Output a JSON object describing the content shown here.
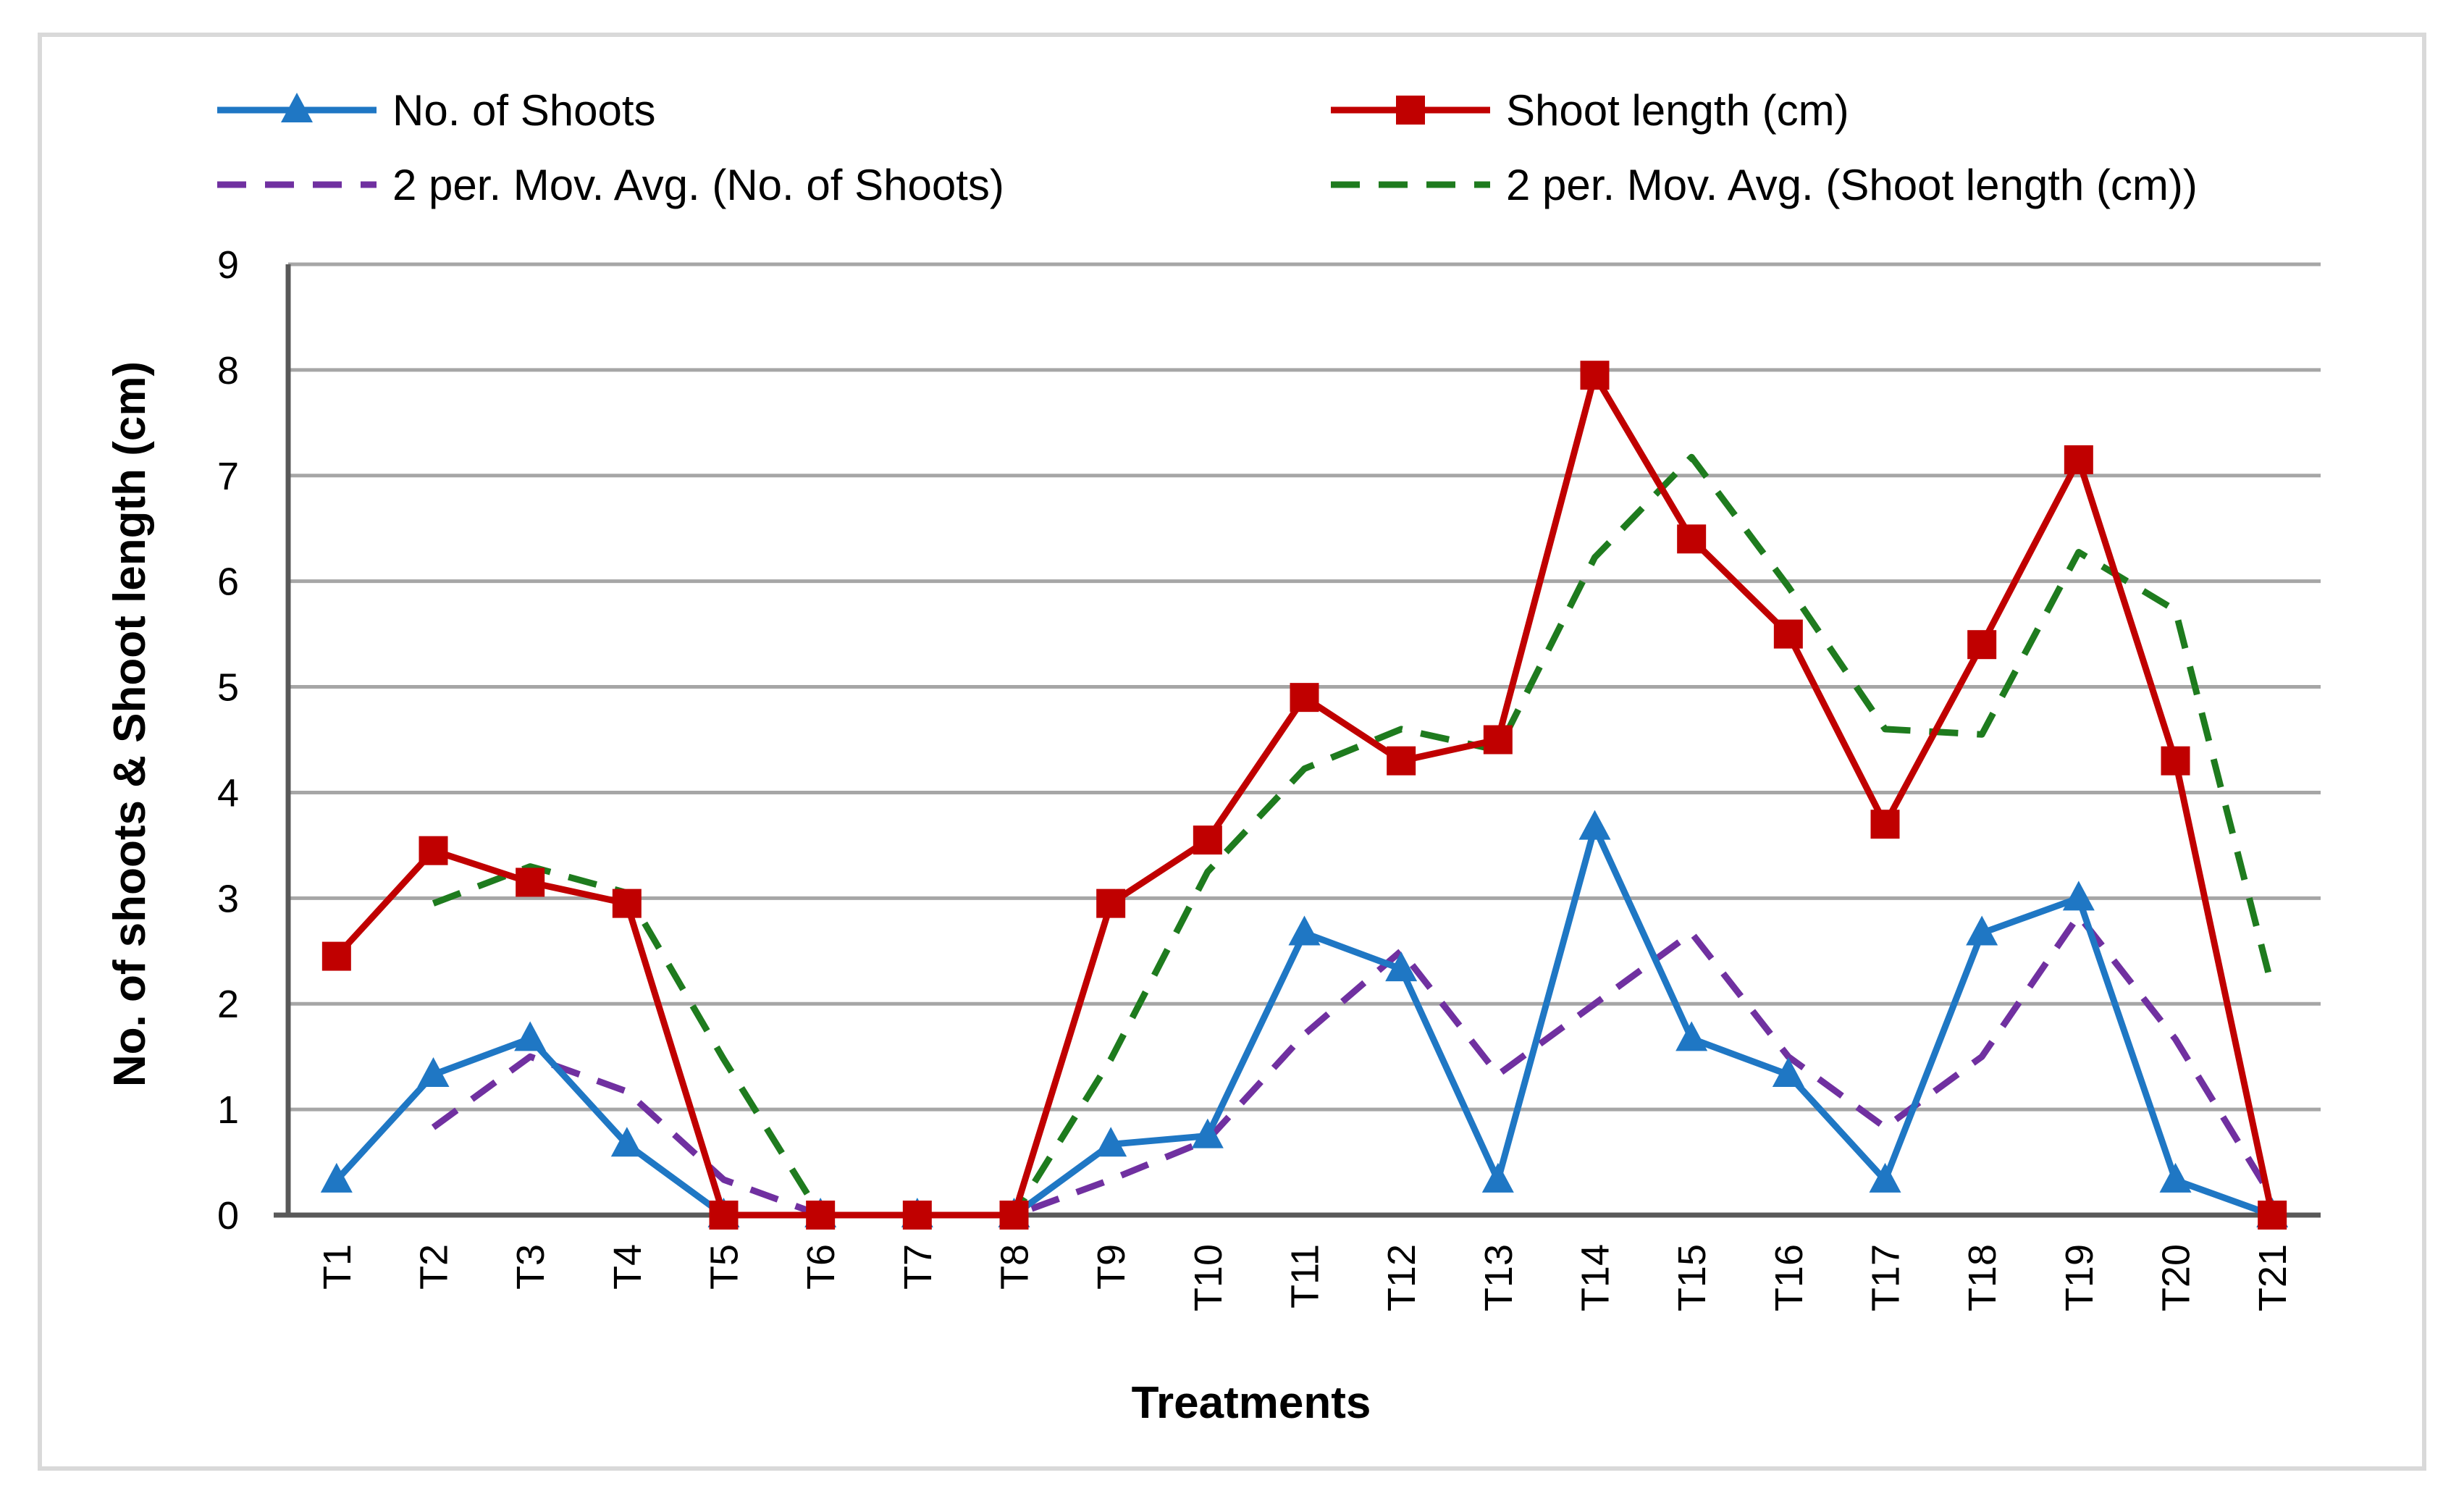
{
  "chart_data": {
    "type": "line",
    "title": "",
    "xlabel": "Treatments",
    "ylabel": "No. of shoots & Shoot length (cm)",
    "ylim": [
      0,
      9
    ],
    "yticks": [
      "0",
      "1",
      "2",
      "3",
      "4",
      "5",
      "6",
      "7",
      "8",
      "9"
    ],
    "grid": true,
    "legend_position": "top",
    "categories": [
      "T1",
      "T2",
      "T3",
      "T4",
      "T5",
      "T6",
      "T7",
      "T8",
      "T9",
      "T10",
      "T11",
      "T12",
      "T13",
      "T14",
      "T15",
      "T16",
      "T17",
      "T18",
      "T19",
      "T20",
      "T21"
    ],
    "series": [
      {
        "name": "No. of Shoots",
        "color": "#1f77c4",
        "marker": "triangle",
        "dash": "solid",
        "values": [
          0.33,
          1.33,
          1.67,
          0.67,
          0,
          0,
          0,
          0,
          0.67,
          0.75,
          2.67,
          2.33,
          0.33,
          3.67,
          1.67,
          1.33,
          0.33,
          2.67,
          3.0,
          0.33,
          0
        ]
      },
      {
        "name": "Shoot length (cm)",
        "color": "#c00000",
        "marker": "square",
        "dash": "solid",
        "values": [
          2.45,
          3.45,
          3.15,
          2.95,
          0,
          0,
          0,
          0,
          2.95,
          3.55,
          4.9,
          4.3,
          4.5,
          7.95,
          6.4,
          5.5,
          3.7,
          5.4,
          7.15,
          4.3,
          0
        ]
      },
      {
        "name": "2 per. Mov. Avg. (No. of Shoots)",
        "color": "#7030a0",
        "marker": "none",
        "dash": "dashed",
        "moving_average_of": "No. of Shoots",
        "period": 2
      },
      {
        "name": "2 per. Mov. Avg. (Shoot length (cm))",
        "color": "#1e7b1e",
        "marker": "none",
        "dash": "dashed",
        "moving_average_of": "Shoot length (cm)",
        "period": 2
      }
    ]
  }
}
